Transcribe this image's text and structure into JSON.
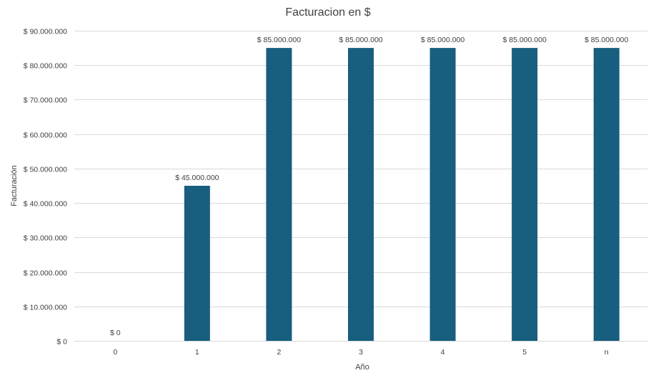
{
  "chart_data": {
    "type": "bar",
    "title": "Facturacion en $",
    "xlabel": "Año",
    "ylabel": "Facturación",
    "categories": [
      "0",
      "1",
      "2",
      "3",
      "4",
      "5",
      "n"
    ],
    "series": [
      {
        "values": [
          0,
          45000000,
          85000000,
          85000000,
          85000000,
          85000000,
          85000000
        ],
        "color": "#175E7F"
      }
    ],
    "data_labels": [
      "$ 0",
      "$ 45.000.000",
      "$ 85.000.000",
      "$ 85.000.000",
      "$ 85.000.000",
      "$ 85.000.000",
      "$ 85.000.000"
    ],
    "ylim": [
      0,
      90000000
    ],
    "y_ticks": [
      0,
      10000000,
      20000000,
      30000000,
      40000000,
      50000000,
      60000000,
      70000000,
      80000000,
      90000000
    ],
    "y_tick_labels": [
      "$ 0",
      "$ 10.000.000",
      "$ 20.000.000",
      "$ 30.000.000",
      "$ 40.000.000",
      "$ 50.000.000",
      "$ 60.000.000",
      "$ 70.000.000",
      "$ 80.000.000",
      "$ 90.000.000"
    ],
    "grid": true,
    "legend": "none"
  }
}
